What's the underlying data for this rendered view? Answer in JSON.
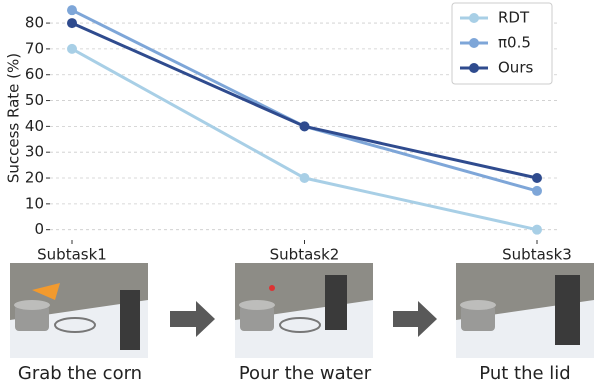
{
  "chart_data": {
    "type": "line",
    "y_label": "Success Rate (%)",
    "categories": [
      "Subtask1",
      "Subtask2",
      "Subtask3"
    ],
    "series": [
      {
        "name": "RDT",
        "color": "#a8cfe6",
        "values": [
          70,
          20,
          0
        ]
      },
      {
        "name": "π0.5",
        "color": "#7ea6d8",
        "values": [
          85,
          40,
          15
        ]
      },
      {
        "name": "Ours",
        "color": "#2f4b8e",
        "values": [
          80,
          40,
          20
        ]
      }
    ],
    "ylim": [
      -4,
      87
    ],
    "yticks": [
      0,
      10,
      20,
      30,
      40,
      50,
      60,
      70,
      80
    ],
    "grid": true,
    "legend": "upper right"
  },
  "steps": [
    "Grab the corn",
    "Pour the water",
    "Put the lid"
  ]
}
